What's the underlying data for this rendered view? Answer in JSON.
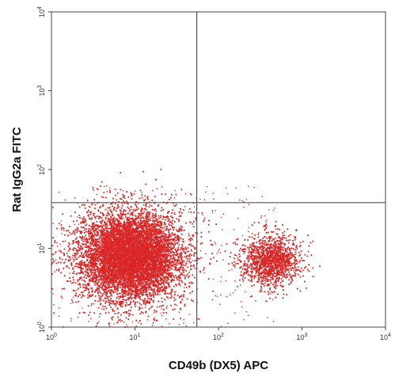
{
  "chart_data": {
    "type": "scatter",
    "xlabel": "CD49b (DX5) APC",
    "ylabel": "Rat IgG2a FITC",
    "x_scale": "log",
    "y_scale": "log",
    "xlim": [
      1,
      10000
    ],
    "ylim": [
      1,
      10000
    ],
    "x_ticks": [
      {
        "value": 1,
        "base": "10",
        "exp": "0"
      },
      {
        "value": 10,
        "base": "10",
        "exp": "1"
      },
      {
        "value": 100,
        "base": "10",
        "exp": "2"
      },
      {
        "value": 1000,
        "base": "10",
        "exp": "3"
      },
      {
        "value": 10000,
        "base": "10",
        "exp": "4"
      }
    ],
    "y_ticks": [
      {
        "value": 1,
        "base": "10",
        "exp": "0"
      },
      {
        "value": 10,
        "base": "10",
        "exp": "1"
      },
      {
        "value": 100,
        "base": "10",
        "exp": "2"
      },
      {
        "value": 1000,
        "base": "10",
        "exp": "3"
      },
      {
        "value": 10000,
        "base": "10",
        "exp": "4"
      }
    ],
    "quadrant_gate": {
      "x": 55,
      "y": 38
    },
    "populations": [
      {
        "center": [
          9,
          8
        ],
        "spread": [
          0.3,
          0.28
        ],
        "relative_size": 0.85
      },
      {
        "center": [
          420,
          7
        ],
        "spread": [
          0.18,
          0.16
        ],
        "relative_size": 0.15
      }
    ],
    "color": "#d92626",
    "grid": false,
    "legend": "none"
  }
}
